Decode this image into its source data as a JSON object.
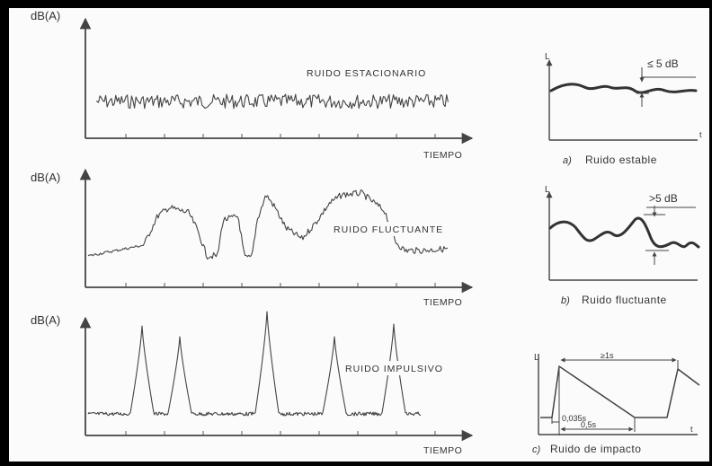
{
  "left_panels": {
    "y_axis_label": "dB(A)",
    "x_axis_label": "TIEMPO",
    "stationary": {
      "label": "RUIDO ESTACIONARIO"
    },
    "fluctuating": {
      "label": "RUIDO FLUCTUANTE"
    },
    "impulsive": {
      "label": "RUIDO IMPULSIVO"
    }
  },
  "right_panels": {
    "y_axis_label": "L",
    "x_axis_label": "t",
    "a": {
      "threshold": "≤ 5 dB",
      "caption_letter": "a)",
      "caption_text": "Ruido estable"
    },
    "b": {
      "threshold": ">5 dB",
      "caption_letter": "b)",
      "caption_text": "Ruido fluctuante"
    },
    "c": {
      "duration": "≥1s",
      "rise_time": "0,035s",
      "decay_time": "0,5s",
      "caption_letter": "c)",
      "caption_text": "Ruido de impacto"
    }
  }
}
